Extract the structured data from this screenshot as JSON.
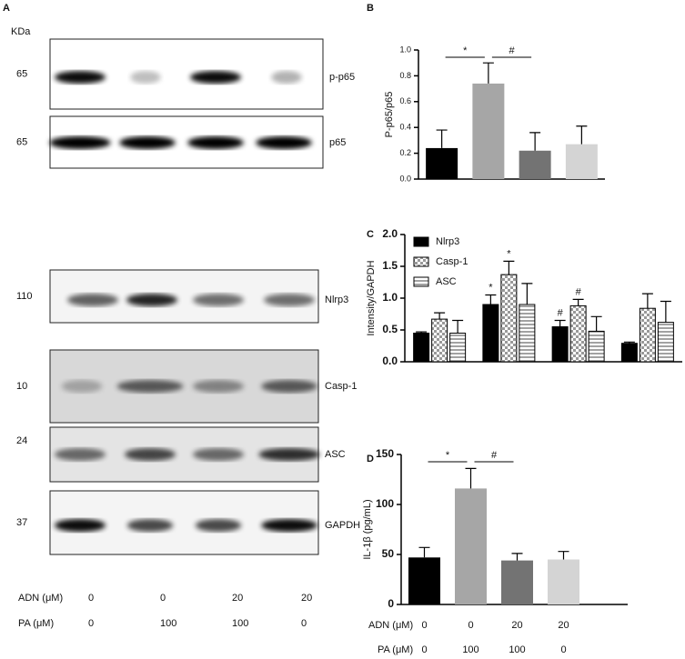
{
  "blots": {
    "panel": "A",
    "unit": "KDa",
    "rows": [
      {
        "kda": "65",
        "protein": "p-p65"
      },
      {
        "kda": "65",
        "protein": "p65"
      },
      {
        "kda": "110",
        "protein": "Nlrp3"
      },
      {
        "kda": "10",
        "protein": "Casp-1"
      },
      {
        "kda": "24",
        "protein": "ASC"
      },
      {
        "kda": "37",
        "protein": "GAPDH"
      }
    ],
    "conditions": [
      {
        "label": "ADN (μM)",
        "values": [
          "0",
          "0",
          "20",
          "20"
        ]
      },
      {
        "label": "PA (μM)",
        "values": [
          "0",
          "100",
          "100",
          "0"
        ]
      }
    ]
  },
  "chart_data": [
    {
      "type": "bar",
      "panel": "B",
      "y_label": "P-p65/p65",
      "values": [
        0.24,
        0.74,
        0.22,
        0.27
      ],
      "errors": [
        0.14,
        0.16,
        0.14,
        0.14
      ],
      "colors": [
        "#000000",
        "#a6a6a6",
        "#737373",
        "#d4d4d4"
      ],
      "ylim": [
        0,
        1
      ],
      "yticks": [
        {
          "value": 0,
          "label": "0.0"
        },
        {
          "value": 0.2,
          "label": "0.2"
        },
        {
          "value": 0.4,
          "label": "0.4"
        },
        {
          "value": 0.6,
          "label": "0.6"
        },
        {
          "value": 0.8,
          "label": "0.8"
        },
        {
          "value": 1,
          "label": "1.0"
        }
      ],
      "annotations": [
        "*",
        "#"
      ]
    },
    {
      "type": "grouped_bar",
      "panel": "C",
      "y_label": "Intensity/GAPDH",
      "legend": "top-left",
      "series": [
        {
          "name": "Nlrp3",
          "color": "#000000",
          "fill": "solid",
          "values": [
            0.45,
            0.9,
            0.55,
            0.29
          ],
          "errors": [
            0.02,
            0.15,
            0.1,
            0.02
          ],
          "value_annotations": [
            null,
            "*",
            "#",
            null
          ]
        },
        {
          "name": "Casp-1",
          "color": "#888888",
          "fill": "checker",
          "values": [
            0.67,
            1.37,
            0.88,
            0.84
          ],
          "errors": [
            0.1,
            0.21,
            0.1,
            0.23
          ],
          "value_annotations": [
            null,
            "*",
            "#",
            null
          ]
        },
        {
          "name": "ASC",
          "color": "#555555",
          "fill": "hstripe",
          "values": [
            0.45,
            0.9,
            0.48,
            0.62
          ],
          "errors": [
            0.2,
            0.33,
            0.23,
            0.33
          ],
          "value_annotations": [
            null,
            null,
            null,
            null
          ]
        }
      ],
      "ylim": [
        0,
        2
      ],
      "yticks": [
        {
          "value": 0,
          "label": "0.0"
        },
        {
          "value": 0.5,
          "label": "0.5"
        },
        {
          "value": 1,
          "label": "1.0"
        },
        {
          "value": 1.5,
          "label": "1.5"
        },
        {
          "value": 2,
          "label": "2.0"
        }
      ]
    },
    {
      "type": "bar",
      "panel": "D",
      "y_label": "IL-1β (pg/mL)",
      "values": [
        47,
        116,
        44,
        45
      ],
      "errors": [
        10,
        20,
        7,
        8
      ],
      "colors": [
        "#000000",
        "#a6a6a6",
        "#737373",
        "#d4d4d4"
      ],
      "ylim": [
        0,
        150
      ],
      "yticks": [
        0,
        50,
        100,
        150
      ],
      "annotations": [
        "*",
        "#"
      ],
      "conditions": [
        {
          "label": "ADN (μM)",
          "values": [
            "0",
            "0",
            "20",
            "20"
          ]
        },
        {
          "label": "PA (μM)",
          "values": [
            "0",
            "100",
            "100",
            "0"
          ]
        }
      ]
    }
  ]
}
